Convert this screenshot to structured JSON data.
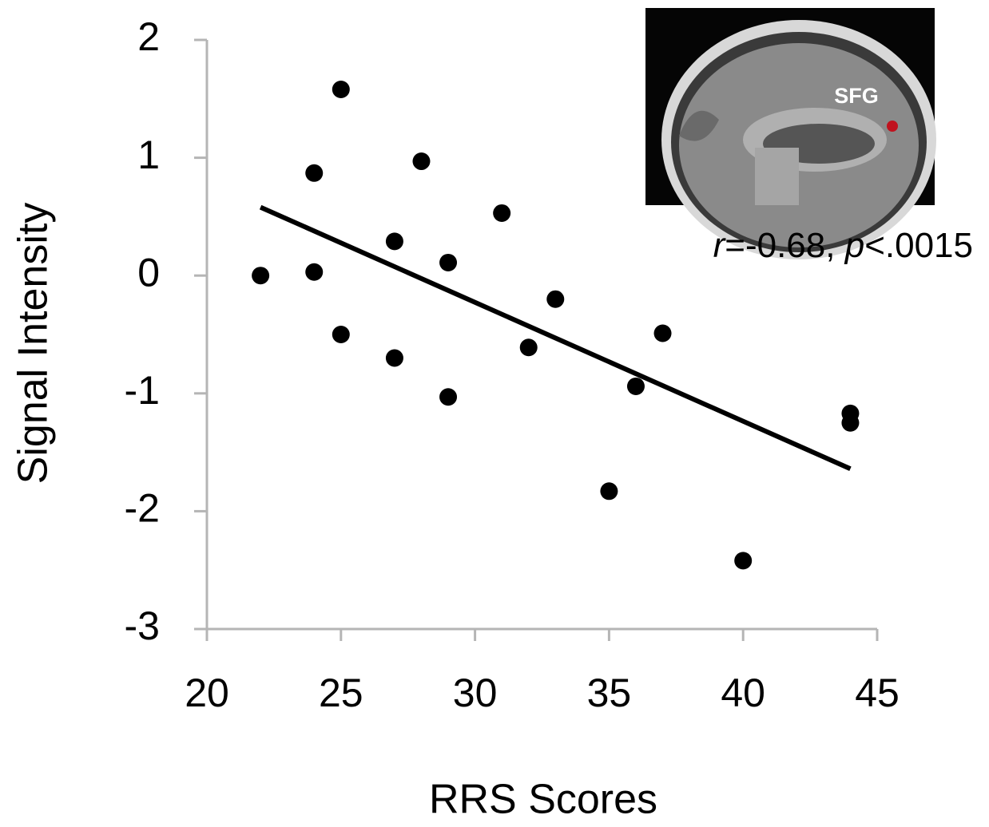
{
  "chart_data": {
    "type": "scatter",
    "x_label": "RRS Scores",
    "y_label": "Signal Intensity",
    "xlim": [
      20,
      45
    ],
    "ylim": [
      -3,
      2
    ],
    "xticks": [
      20,
      25,
      30,
      35,
      40,
      45
    ],
    "yticks": [
      -3,
      -2,
      -1,
      0,
      1,
      2
    ],
    "color": "#000000",
    "x": [
      22,
      24,
      24,
      25,
      25,
      27,
      27,
      28,
      29,
      29,
      31,
      32,
      33,
      35,
      36,
      37,
      40,
      44,
      44
    ],
    "values": [
      0,
      0.87,
      0.03,
      1.58,
      -0.5,
      0.29,
      -0.7,
      0.97,
      0.11,
      -1.03,
      0.53,
      -0.61,
      -0.2,
      -1.83,
      -0.94,
      -0.49,
      -2.42,
      -1.17,
      -1.25
    ],
    "trendline": {
      "x": [
        22,
        44
      ],
      "values": [
        0.58,
        -1.64
      ]
    },
    "annotation": [
      {
        "text": "r",
        "italic": true
      },
      {
        "text": "=-0.68, ",
        "italic": false
      },
      {
        "text": "p",
        "italic": true
      },
      {
        "text": "<.0015",
        "italic": false
      }
    ],
    "inset_label": "SFG"
  }
}
